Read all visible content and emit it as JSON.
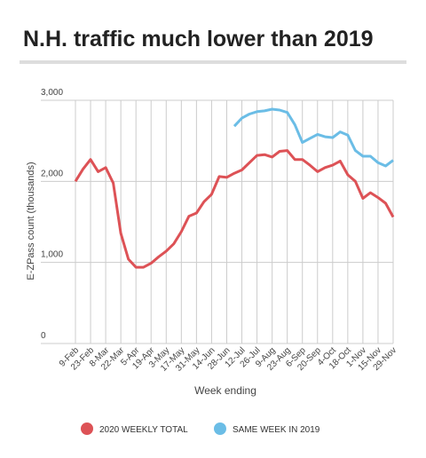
{
  "chart_data": {
    "type": "line",
    "title": "N.H. traffic much lower than 2019",
    "x_label": "Week ending",
    "y_label": "E-ZPass count (thousands)",
    "categories": [
      "9-Feb",
      null,
      "23-Feb",
      null,
      "8-Mar",
      null,
      "22-Mar",
      null,
      "5-Apr",
      null,
      "19-Apr",
      null,
      "3-May",
      null,
      "17-May",
      null,
      "31-May",
      null,
      "14-Jun",
      null,
      "28-Jun",
      null,
      "12-Jul",
      null,
      "26-Jul",
      null,
      "9-Aug",
      null,
      "23-Aug",
      null,
      "6-Sep",
      null,
      "20-Sep",
      null,
      "4-Oct",
      null,
      "18-Oct",
      null,
      "1-Nov",
      null,
      "15-Nov",
      null,
      "29-Nov"
    ],
    "series": [
      {
        "name": "2020 WEEKLY TOTAL",
        "color": "#dd5256",
        "values": [
          2000,
          2150,
          2270,
          2120,
          2170,
          1980,
          1360,
          1040,
          940,
          940,
          990,
          1070,
          1140,
          1230,
          1380,
          1570,
          1610,
          1750,
          1840,
          2060,
          2050,
          2100,
          2140,
          2230,
          2320,
          2330,
          2300,
          2370,
          2380,
          2270,
          2270,
          2200,
          2120,
          2170,
          2200,
          2250,
          2080,
          2000,
          1790,
          1860,
          1800,
          1730,
          1560
        ]
      },
      {
        "name": "SAME WEEK IN 2019",
        "color": "#6bbde6",
        "values": [
          null,
          null,
          null,
          null,
          null,
          null,
          null,
          null,
          null,
          null,
          null,
          null,
          null,
          null,
          null,
          null,
          null,
          null,
          null,
          null,
          null,
          2680,
          2780,
          2830,
          2860,
          2870,
          2890,
          2880,
          2850,
          2700,
          2480,
          2530,
          2580,
          2550,
          2540,
          2610,
          2570,
          2380,
          2310,
          2310,
          2230,
          2190,
          2260
        ]
      }
    ],
    "ylim": [
      0,
      3000
    ],
    "yticks": [
      0,
      {
        "value": 1000,
        "label": "1,000"
      },
      {
        "value": 2000,
        "label": "2,000"
      },
      {
        "value": 3000,
        "label": "3,000"
      }
    ],
    "grid": true
  }
}
